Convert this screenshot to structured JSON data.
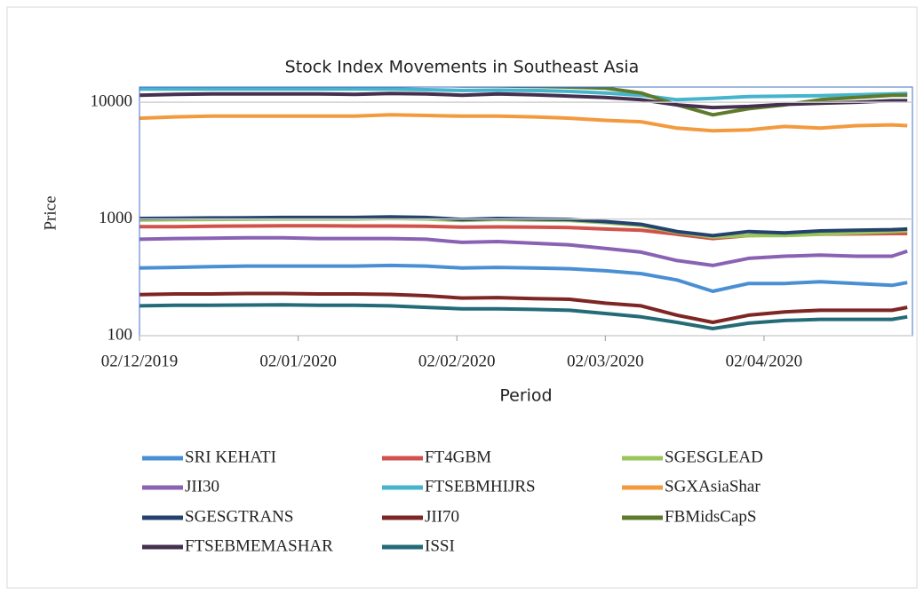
{
  "chart_data": {
    "type": "line",
    "title": "Stock Index Movements in Southeast Asia",
    "x_label": "Period",
    "y_label": "Price",
    "log_scale": true,
    "grid": true,
    "x": [
      "2019-12-02",
      "2019-12-09",
      "2019-12-16",
      "2019-12-23",
      "2019-12-30",
      "2020-01-06",
      "2020-01-13",
      "2020-01-20",
      "2020-01-27",
      "2020-02-03",
      "2020-02-10",
      "2020-02-17",
      "2020-02-24",
      "2020-03-02",
      "2020-03-09",
      "2020-03-16",
      "2020-03-23",
      "2020-03-30",
      "2020-04-06",
      "2020-04-13",
      "2020-04-20",
      "2020-04-27",
      "2020-04-30"
    ],
    "xlim": [
      "2019-12-02",
      "2020-05-01"
    ],
    "xticks": [
      {
        "value": "2019-12-02",
        "label": "02/12/2019"
      },
      {
        "value": "2020-01-02",
        "label": "02/01/2020"
      },
      {
        "value": "2020-02-02",
        "label": "02/02/2020"
      },
      {
        "value": "2020-03-02",
        "label": "02/03/2020"
      },
      {
        "value": "2020-04-02",
        "label": "02/04/2020"
      }
    ],
    "ylim": [
      100,
      13500
    ],
    "yticks": [
      100,
      1000,
      10000
    ],
    "series": [
      {
        "name": "SRI KEHATI",
        "color": "#4a8fd4",
        "values": [
          380,
          385,
          390,
          395,
          395,
          395,
          395,
          400,
          395,
          380,
          385,
          380,
          375,
          360,
          340,
          300,
          240,
          280,
          280,
          290,
          280,
          270,
          285
        ]
      },
      {
        "name": "FT4GBM",
        "color": "#d0524a",
        "values": [
          860,
          860,
          865,
          870,
          875,
          875,
          870,
          870,
          865,
          850,
          855,
          850,
          845,
          820,
          800,
          740,
          680,
          720,
          730,
          740,
          745,
          750,
          750
        ]
      },
      {
        "name": "SGESGLEAD",
        "color": "#9bc45a",
        "values": [
          980,
          985,
          990,
          995,
          1000,
          1000,
          1000,
          1010,
          1000,
          970,
          990,
          980,
          970,
          930,
          880,
          770,
          700,
          720,
          720,
          740,
          760,
          780,
          790
        ]
      },
      {
        "name": "JII30",
        "color": "#8a62b4",
        "values": [
          670,
          680,
          685,
          690,
          690,
          680,
          680,
          680,
          670,
          630,
          640,
          620,
          600,
          560,
          520,
          440,
          400,
          460,
          480,
          490,
          480,
          480,
          530
        ]
      },
      {
        "name": "FTSEBMHIJRS",
        "color": "#45b4cc",
        "values": [
          13000,
          13000,
          13000,
          13000,
          13000,
          13000,
          13000,
          13000,
          12800,
          12600,
          12700,
          12600,
          12400,
          12000,
          11500,
          10500,
          10800,
          11200,
          11300,
          11400,
          11600,
          11800,
          11900
        ]
      },
      {
        "name": "SGXAsiaShar",
        "color": "#f39a3e",
        "values": [
          7300,
          7500,
          7600,
          7600,
          7600,
          7600,
          7600,
          7800,
          7700,
          7600,
          7600,
          7500,
          7300,
          7000,
          6800,
          6000,
          5700,
          5800,
          6200,
          6000,
          6300,
          6400,
          6300
        ]
      },
      {
        "name": "SGESGTRANS",
        "color": "#23436e",
        "values": [
          1010,
          1015,
          1020,
          1025,
          1030,
          1030,
          1030,
          1040,
          1030,
          990,
          1010,
          1000,
          990,
          950,
          900,
          780,
          720,
          780,
          760,
          790,
          800,
          810,
          820
        ]
      },
      {
        "name": "JII70",
        "color": "#7d2624",
        "values": [
          225,
          228,
          228,
          230,
          230,
          228,
          228,
          226,
          220,
          210,
          212,
          208,
          205,
          190,
          180,
          150,
          130,
          150,
          160,
          165,
          165,
          165,
          175
        ]
      },
      {
        "name": "FBMidsCapS",
        "color": "#5e7b2c",
        "values": [
          14000,
          14000,
          14000,
          14000,
          14000,
          14000,
          14000,
          14000,
          14000,
          13800,
          13800,
          13700,
          13500,
          13200,
          12000,
          9500,
          7800,
          8800,
          9500,
          10500,
          11000,
          11500,
          11500
        ]
      },
      {
        "name": "FTSEBMEMASHAR",
        "color": "#46304f",
        "values": [
          11500,
          11700,
          11800,
          11800,
          11800,
          11800,
          11700,
          11900,
          11800,
          11500,
          11800,
          11600,
          11300,
          11000,
          10500,
          9500,
          9000,
          9200,
          9600,
          9800,
          10000,
          10300,
          10300
        ]
      },
      {
        "name": "ISSI",
        "color": "#246b78",
        "values": [
          180,
          182,
          182,
          183,
          184,
          182,
          182,
          180,
          175,
          170,
          170,
          168,
          165,
          155,
          145,
          130,
          115,
          128,
          135,
          138,
          138,
          138,
          145
        ]
      }
    ]
  }
}
